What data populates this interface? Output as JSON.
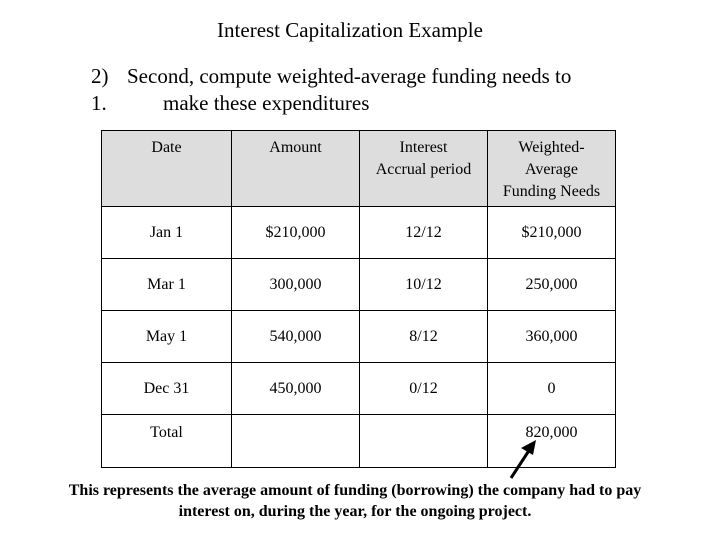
{
  "title": "Interest Capitalization Example",
  "step": {
    "number": "2)",
    "line1": "Second, compute weighted-average funding needs to",
    "line2_number": "1.",
    "line2": "make these expenditures"
  },
  "table": {
    "headers": [
      [
        "Date"
      ],
      [
        "Amount"
      ],
      [
        "Interest",
        "Accrual period"
      ],
      [
        "Weighted-",
        "Average",
        "Funding Needs"
      ]
    ],
    "rows": [
      {
        "date": "Jan 1",
        "amount": "$210,000",
        "period": "12/12",
        "needs": "$210,000"
      },
      {
        "date": "Mar 1",
        "amount": "300,000",
        "period": "10/12",
        "needs": "250,000"
      },
      {
        "date": "May 1",
        "amount": "540,000",
        "period": "8/12",
        "needs": "360,000"
      },
      {
        "date": "Dec 31",
        "amount": "450,000",
        "period": "0/12",
        "needs": "0"
      }
    ],
    "total": {
      "label": "Total",
      "needs": "820,000"
    }
  },
  "note": {
    "line1": "This represents the average amount of funding (borrowing) the company had to pay",
    "line2": "interest on, during the year, for the ongoing project."
  }
}
